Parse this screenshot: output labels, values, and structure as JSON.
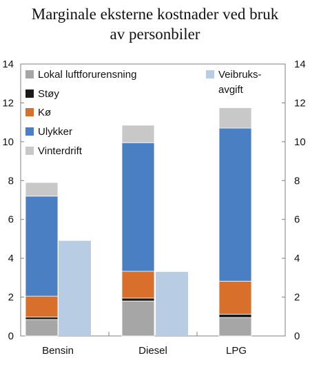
{
  "chart_data": {
    "type": "bar",
    "stacked": true,
    "title_lines": [
      "Marginale eksterne kostnader ved bruk",
      "av personbiler"
    ],
    "categories": [
      "Bensin",
      "Diesel",
      "LPG"
    ],
    "ylim": [
      0,
      14
    ],
    "yticks": [
      0,
      2,
      4,
      6,
      8,
      10,
      12,
      14
    ],
    "dual_axis": true,
    "grid": false,
    "stack_series": [
      {
        "name": "Lokal luftforurensning",
        "color": "#a6a6a6",
        "values": [
          0.85,
          1.8,
          0.95
        ]
      },
      {
        "name": "Støy",
        "color": "#1a1a1a",
        "values": [
          0.12,
          0.15,
          0.17
        ]
      },
      {
        "name": "Kø",
        "color": "#d86f2a",
        "values": [
          1.08,
          1.38,
          1.7
        ]
      },
      {
        "name": "Ulykker",
        "color": "#4a7fc3",
        "values": [
          5.15,
          6.62,
          7.88
        ]
      },
      {
        "name": "Vinterdrift",
        "color": "#c8c8c8",
        "values": [
          0.7,
          0.9,
          1.05
        ]
      }
    ],
    "side_series": {
      "name": "Veibruks-avgift",
      "name_lines": [
        "Veibruks-",
        "avgift"
      ],
      "color": "#b8cce4",
      "values": [
        4.9,
        3.3,
        null
      ]
    },
    "legend_placement": "top-left and top-right inside plot"
  }
}
